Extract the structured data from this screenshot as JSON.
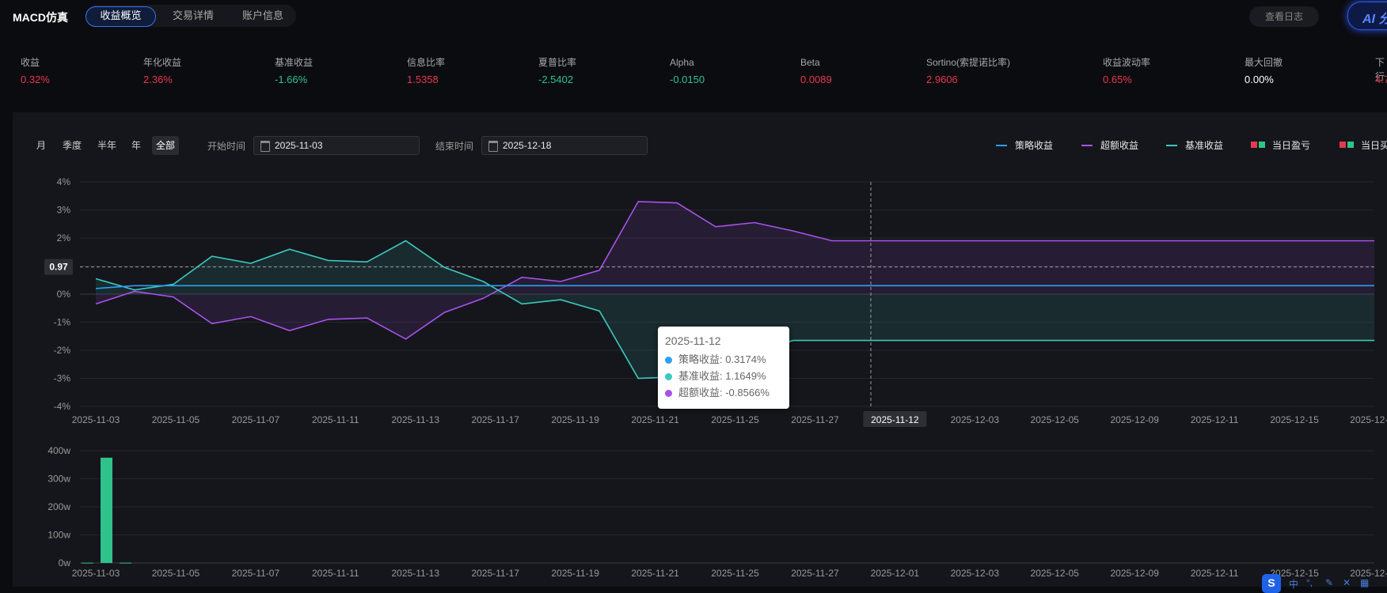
{
  "app": {
    "title": "MACD仿真"
  },
  "tabs": [
    "收益概览",
    "交易详情",
    "账户信息"
  ],
  "header": {
    "log_button": "查看日志",
    "ai_button": "AI 分"
  },
  "metrics": [
    {
      "label": "收益",
      "value": "0.32%",
      "color": "#e53a4e"
    },
    {
      "label": "年化收益",
      "value": "2.36%",
      "color": "#e53a4e"
    },
    {
      "label": "基准收益",
      "value": "-1.66%",
      "color": "#2fc38b"
    },
    {
      "label": "信息比率",
      "value": "1.5358",
      "color": "#e53a4e"
    },
    {
      "label": "夏普比率",
      "value": "-2.5402",
      "color": "#2fc38b"
    },
    {
      "label": "Alpha",
      "value": "-0.0150",
      "color": "#2fc38b"
    },
    {
      "label": "Beta",
      "value": "0.0089",
      "color": "#e53a4e"
    },
    {
      "label": "Sortino(索提诺比率)",
      "value": "2.9606",
      "color": "#e53a4e"
    },
    {
      "label": "收益波动率",
      "value": "0.65%",
      "color": "#e53a4e"
    },
    {
      "label": "最大回撤",
      "value": "0.00%",
      "color": "#ffffff"
    },
    {
      "label": "下行",
      "value": "4.7",
      "color": "#e53a4e"
    }
  ],
  "controls": {
    "periods": [
      "月",
      "季度",
      "半年",
      "年",
      "全部"
    ],
    "active_period": "全部",
    "start_label": "开始时间",
    "start_value": "2025-11-03",
    "end_label": "结束时间",
    "end_value": "2025-12-18"
  },
  "legend": [
    {
      "label": "策略收益",
      "type": "line",
      "color": "#2f9ff0"
    },
    {
      "label": "超额收益",
      "type": "line",
      "color": "#a852ec"
    },
    {
      "label": "基准收益",
      "type": "line",
      "color": "#3cc8c0"
    },
    {
      "label": "当日盈亏",
      "type": "squares",
      "colors": [
        "#e53a4e",
        "#2fc38b"
      ]
    },
    {
      "label": "当日买",
      "type": "squares",
      "colors": [
        "#e53a4e",
        "#2fc38b"
      ]
    }
  ],
  "tooltip": {
    "date": "2025-11-12",
    "rows": [
      {
        "label": "策略收益: 0.3174%",
        "color": "#2f9ff0"
      },
      {
        "label": "基准收益: 1.1649%",
        "color": "#3cc8c0"
      },
      {
        "label": "超额收益: -0.8566%",
        "color": "#a852ec"
      }
    ]
  },
  "crosshair": {
    "y_label": "0.97",
    "x_label": "2025-11-12"
  },
  "chart_data": [
    {
      "type": "line",
      "x_tick_labels": [
        "2025-11-03",
        "2025-11-05",
        "2025-11-07",
        "2025-11-11",
        "2025-11-13",
        "2025-11-17",
        "2025-11-19",
        "2025-11-21",
        "2025-11-25",
        "2025-11-27",
        "2025-12-01",
        "2025-12-03",
        "2025-12-05",
        "2025-12-09",
        "2025-12-11",
        "2025-12-15",
        "2025-12-17"
      ],
      "ylim": [
        -4,
        4
      ],
      "y_ticks": [
        "-4%",
        "-3%",
        "-2%",
        "-1%",
        "0%",
        "1%",
        "2%",
        "3%",
        "4%"
      ],
      "series": [
        {
          "name": "策略收益",
          "color": "#2f9ff0",
          "values": [
            0.2,
            0.3,
            0.3,
            0.3,
            0.3,
            0.3,
            0.3,
            0.3,
            0.3,
            0.3,
            0.3,
            0.3,
            0.3,
            0.3,
            0.3,
            0.3,
            0.3,
            0.3,
            0.3,
            0.3,
            0.3,
            0.3,
            0.3,
            0.3,
            0.3,
            0.3,
            0.3,
            0.3,
            0.3,
            0.3,
            0.3,
            0.3,
            0.3,
            0.3
          ]
        },
        {
          "name": "基准收益",
          "color": "#3cc8c0",
          "values": [
            0.55,
            0.15,
            0.35,
            1.35,
            1.1,
            1.6,
            1.2,
            1.15,
            1.9,
            0.95,
            0.45,
            -0.35,
            -0.2,
            -0.6,
            -3.0,
            -2.95,
            -2.5,
            -2.05,
            -1.65,
            -1.65,
            -1.65,
            -1.65,
            -1.65,
            -1.65,
            -1.65,
            -1.65,
            -1.65,
            -1.65,
            -1.65,
            -1.65,
            -1.65,
            -1.65,
            -1.65,
            -1.65
          ]
        },
        {
          "name": "超额收益",
          "color": "#a852ec",
          "values": [
            -0.35,
            0.1,
            -0.1,
            -1.05,
            -0.8,
            -1.3,
            -0.9,
            -0.85,
            -1.6,
            -0.65,
            -0.15,
            0.6,
            0.45,
            0.85,
            3.3,
            3.25,
            2.4,
            2.55,
            2.25,
            1.9,
            1.9,
            1.9,
            1.9,
            1.9,
            1.9,
            1.9,
            1.9,
            1.9,
            1.9,
            1.9,
            1.9,
            1.9,
            1.9,
            1.9
          ]
        }
      ]
    },
    {
      "type": "bar",
      "x_tick_labels": [
        "2025-11-03",
        "2025-11-05",
        "2025-11-07",
        "2025-11-11",
        "2025-11-13",
        "2025-11-17",
        "2025-11-19",
        "2025-11-21",
        "2025-11-25",
        "2025-11-27",
        "2025-12-01",
        "2025-12-03",
        "2025-12-05",
        "2025-12-09",
        "2025-12-11",
        "2025-12-15",
        "2025-12-17"
      ],
      "ylim": [
        0,
        400
      ],
      "y_ticks": [
        "0w",
        "100w",
        "200w",
        "300w",
        "400w"
      ],
      "series": [
        {
          "name": "当日买",
          "color": "#2fc38b",
          "values": [
            1,
            375,
            1
          ]
        }
      ]
    }
  ]
}
